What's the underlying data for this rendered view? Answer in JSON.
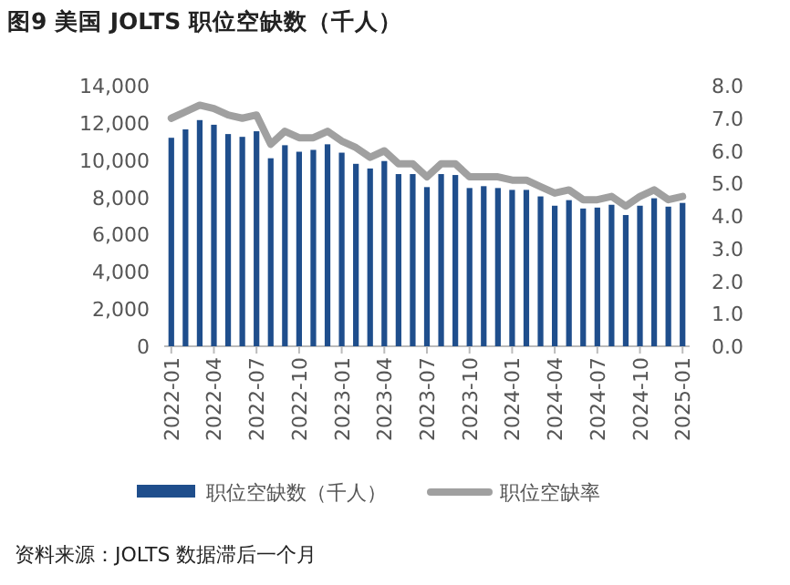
{
  "chart_data": {
    "type": "bar",
    "title": "图9  美国 JOLTS 职位空缺数（千人）",
    "categories": [
      "2022-01",
      null,
      null,
      "2022-04",
      null,
      null,
      "2022-07",
      null,
      null,
      "2022-10",
      null,
      null,
      "2023-01",
      null,
      null,
      "2023-04",
      null,
      null,
      "2023-07",
      null,
      null,
      "2023-10",
      null,
      null,
      "2024-01",
      null,
      null,
      "2024-04",
      null,
      null,
      "2024-07",
      null,
      null,
      "2024-10",
      null,
      null,
      "2025-01"
    ],
    "series": [
      {
        "name": "职位空缺数（千人）",
        "color": "#1f4e8c",
        "values": [
          11200,
          11650,
          12150,
          11900,
          11400,
          11250,
          11550,
          10100,
          10800,
          10450,
          10550,
          10850,
          10400,
          9800,
          9550,
          9950,
          9250,
          9250,
          8550,
          9250,
          9200,
          8500,
          8600,
          8500,
          8400,
          8400,
          8050,
          7550,
          7850,
          7400,
          7450,
          7600,
          7050,
          7550,
          7950,
          7500,
          7700
        ]
      },
      {
        "name": "职位空缺率",
        "type": "line",
        "axis": "y2",
        "color": "#a0a0a0",
        "values": [
          7.0,
          7.2,
          7.4,
          7.3,
          7.1,
          7.0,
          7.1,
          6.2,
          6.6,
          6.4,
          6.4,
          6.6,
          6.3,
          6.1,
          5.8,
          6.0,
          5.6,
          5.6,
          5.2,
          5.6,
          5.6,
          5.2,
          5.2,
          5.2,
          5.1,
          5.1,
          4.9,
          4.7,
          4.8,
          4.5,
          4.5,
          4.6,
          4.3,
          4.6,
          4.8,
          4.5,
          4.6
        ]
      }
    ],
    "ylim": [
      0,
      14000
    ],
    "yticks": [
      0,
      {
        "value": 2000,
        "label": "2,000"
      },
      {
        "value": 4000,
        "label": "4,000"
      },
      {
        "value": 6000,
        "label": "6,000"
      },
      {
        "value": 8000,
        "label": "8,000"
      },
      {
        "value": 10000,
        "label": "10,000"
      },
      {
        "value": 12000,
        "label": "12,000"
      },
      {
        "value": 14000,
        "label": "14,000"
      }
    ],
    "y2lim": [
      0,
      8
    ],
    "y2ticks": [
      {
        "value": 0,
        "label": "0.0"
      },
      {
        "value": 1,
        "label": "1.0"
      },
      {
        "value": 2,
        "label": "2.0"
      },
      {
        "value": 3,
        "label": "3.0"
      },
      {
        "value": 4,
        "label": "4.0"
      },
      {
        "value": 5,
        "label": "5.0"
      },
      {
        "value": 6,
        "label": "6.0"
      },
      {
        "value": 7,
        "label": "7.0"
      },
      {
        "value": 8,
        "label": "8.0"
      }
    ],
    "legend": "bottom",
    "annotations": [
      "资料来源：JOLTS 数据滞后一个月"
    ]
  }
}
